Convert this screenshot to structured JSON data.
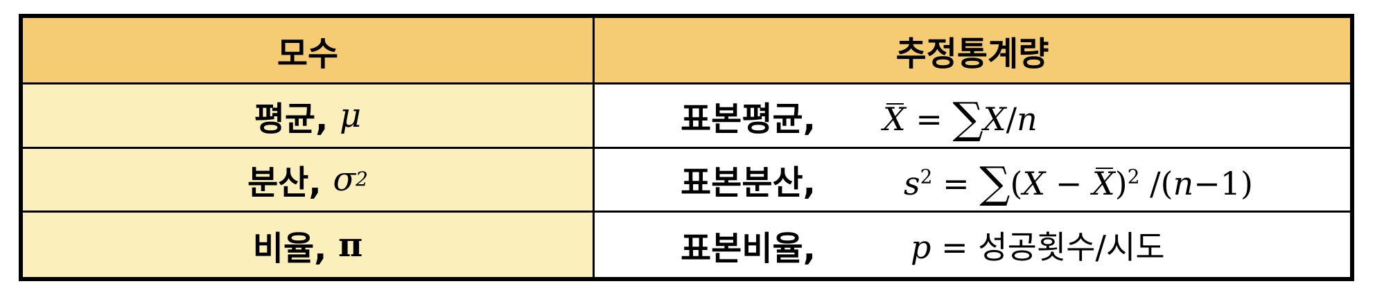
{
  "header": {
    "param_col": "모수",
    "est_col": "추정통계량"
  },
  "rows": [
    {
      "param_label": "평균,",
      "param_symbol": "μ",
      "est_label": "표본평균,",
      "formula": {
        "lhs": "X",
        "eq": "=",
        "sum": "∑",
        "body": "X",
        "slash": "/",
        "denom": "n"
      }
    },
    {
      "param_label": "분산,",
      "param_symbol": "σ",
      "param_exp": "2",
      "est_label": "표본분산,",
      "formula": {
        "lhs": "s",
        "lhs_exp": "2",
        "eq": "=",
        "sum": "∑",
        "open": "(",
        "x": "X",
        "minus": "−",
        "xbar": "X",
        "close": ")",
        "exp": "2",
        "rest_open": "/(",
        "n": "n",
        "rest_tail": "−1)"
      }
    },
    {
      "param_label": "비율,",
      "param_symbol": "π",
      "est_label": "표본비율,",
      "formula": {
        "lhs": "p",
        "eq": "=",
        "rhs": "성공횟수/시도"
      }
    }
  ],
  "colors": {
    "header_bg": "#f5cb74",
    "param_bg": "#fbefbb",
    "border": "#000000"
  }
}
